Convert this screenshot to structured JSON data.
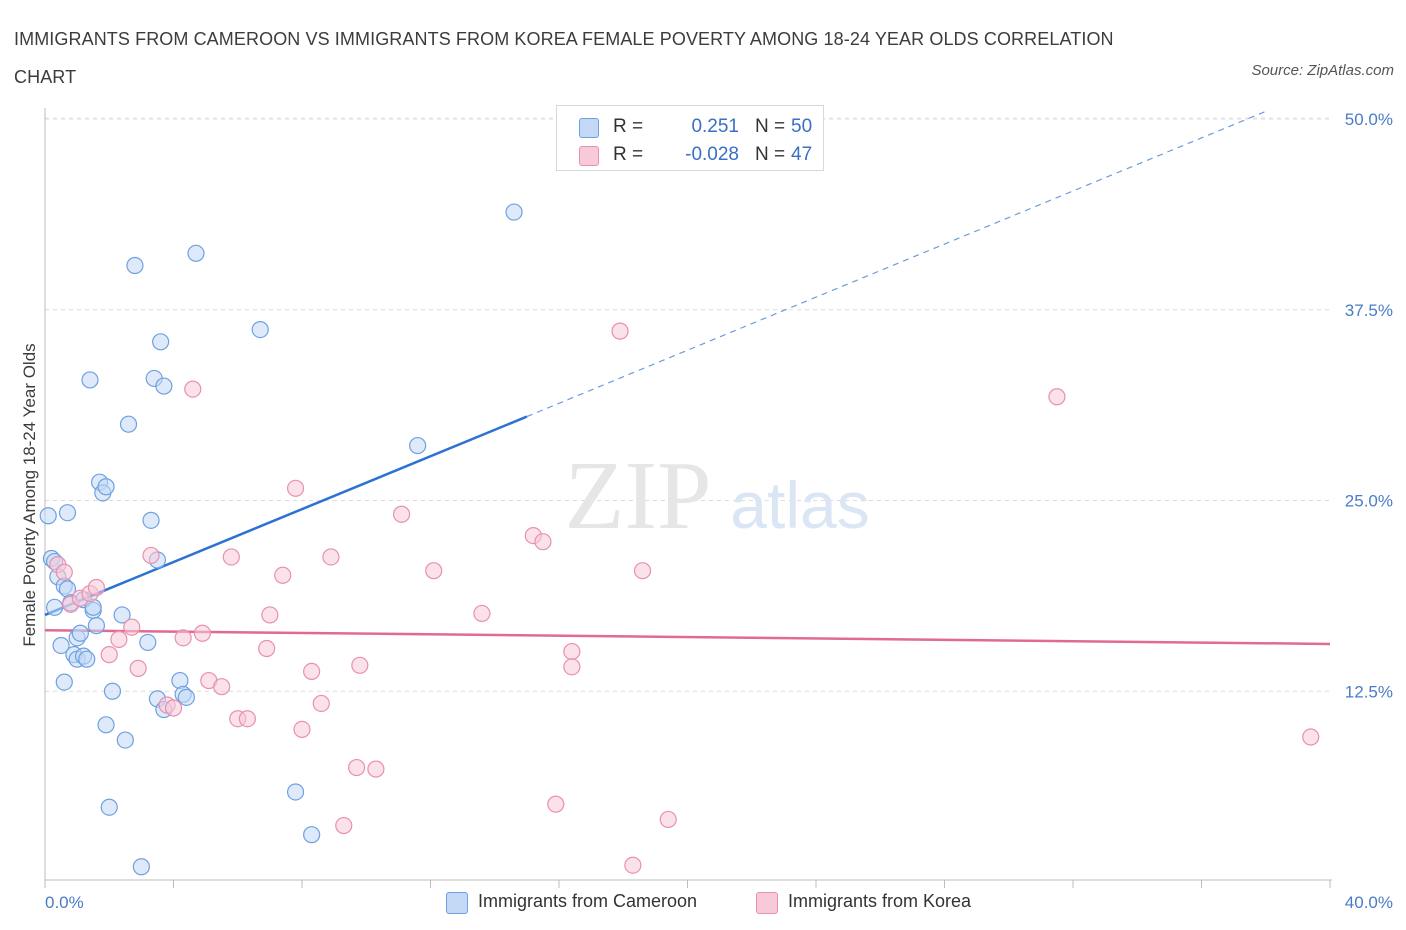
{
  "title": "IMMIGRANTS FROM CAMEROON VS IMMIGRANTS FROM KOREA FEMALE POVERTY AMONG 18-24 YEAR OLDS CORRELATION CHART",
  "source": "Source: ZipAtlas.com",
  "watermark": {
    "zip": "ZIP",
    "atlas": "atlas"
  },
  "legend_top": {
    "rows": [
      {
        "r_label": "R =",
        "r_value": "0.251",
        "n_label": "N =",
        "n_value": "50"
      },
      {
        "r_label": "R =",
        "r_value": "-0.028",
        "n_label": "N =",
        "n_value": "47"
      }
    ]
  },
  "legend_bottom": [
    "Immigrants from Cameroon",
    "Immigrants from Korea"
  ],
  "chart_data": {
    "type": "scatter",
    "title": "IMMIGRANTS FROM CAMEROON VS IMMIGRANTS FROM KOREA FEMALE POVERTY AMONG 18-24 YEAR OLDS CORRELATION CHART",
    "xlabel": "",
    "ylabel": "Female Poverty Among 18-24 Year Olds",
    "xlim": [
      0,
      40
    ],
    "ylim": [
      0,
      50
    ],
    "x_tick_labels": [
      "0.0%",
      "40.0%"
    ],
    "y_ticks": [
      12.5,
      25,
      37.5,
      50
    ],
    "y_tick_labels": [
      "12.5%",
      "25.0%",
      "37.5%",
      "50.0%"
    ],
    "grid": true,
    "legend_position": "top-center",
    "series": [
      {
        "name": "Immigrants from Cameroon",
        "color": "#6fa0e0",
        "fill": "#c2d8f5",
        "line_color": "#2c72d2",
        "trend": {
          "x": [
            0,
            15
          ],
          "y": [
            17.5,
            30.5
          ],
          "dashed_to": [
            38,
            50.5
          ]
        },
        "points": [
          [
            0.1,
            24.0
          ],
          [
            0.2,
            21.2
          ],
          [
            0.3,
            21.0
          ],
          [
            0.3,
            18.0
          ],
          [
            0.4,
            20.0
          ],
          [
            0.5,
            15.5
          ],
          [
            0.6,
            19.4
          ],
          [
            0.6,
            13.1
          ],
          [
            0.7,
            19.2
          ],
          [
            0.7,
            24.2
          ],
          [
            0.8,
            18.3
          ],
          [
            0.9,
            14.9
          ],
          [
            1.0,
            14.6
          ],
          [
            1.0,
            16.0
          ],
          [
            1.1,
            16.3
          ],
          [
            1.2,
            18.5
          ],
          [
            1.2,
            14.8
          ],
          [
            1.3,
            14.6
          ],
          [
            1.4,
            32.9
          ],
          [
            1.5,
            17.8
          ],
          [
            1.5,
            18.0
          ],
          [
            1.6,
            16.8
          ],
          [
            1.7,
            26.2
          ],
          [
            1.8,
            25.5
          ],
          [
            1.9,
            25.9
          ],
          [
            1.9,
            10.3
          ],
          [
            2.0,
            4.9
          ],
          [
            2.1,
            12.5
          ],
          [
            2.4,
            17.5
          ],
          [
            2.5,
            9.3
          ],
          [
            2.6,
            30.0
          ],
          [
            2.8,
            40.4
          ],
          [
            3.0,
            1.0
          ],
          [
            3.2,
            15.7
          ],
          [
            3.3,
            23.7
          ],
          [
            3.4,
            33.0
          ],
          [
            3.5,
            21.1
          ],
          [
            3.5,
            12.0
          ],
          [
            3.6,
            35.4
          ],
          [
            3.7,
            32.5
          ],
          [
            3.7,
            11.3
          ],
          [
            4.2,
            13.2
          ],
          [
            4.3,
            12.3
          ],
          [
            4.4,
            12.1
          ],
          [
            4.7,
            41.2
          ],
          [
            6.7,
            36.2
          ],
          [
            7.8,
            5.9
          ],
          [
            8.3,
            3.1
          ],
          [
            11.6,
            28.6
          ],
          [
            14.6,
            43.9
          ]
        ]
      },
      {
        "name": "Immigrants from Korea",
        "color": "#e890b0",
        "fill": "#f7c9d9",
        "line_color": "#e06a93",
        "trend": {
          "x": [
            0,
            40
          ],
          "y": [
            16.5,
            15.6
          ]
        },
        "points": [
          [
            0.4,
            20.8
          ],
          [
            0.6,
            20.3
          ],
          [
            0.8,
            18.2
          ],
          [
            1.1,
            18.6
          ],
          [
            1.4,
            18.9
          ],
          [
            1.6,
            19.3
          ],
          [
            2.0,
            14.9
          ],
          [
            2.3,
            15.9
          ],
          [
            2.7,
            16.7
          ],
          [
            2.9,
            14.0
          ],
          [
            3.3,
            21.4
          ],
          [
            3.8,
            11.6
          ],
          [
            4.0,
            11.4
          ],
          [
            4.3,
            16.0
          ],
          [
            4.6,
            32.3
          ],
          [
            4.9,
            16.3
          ],
          [
            5.1,
            13.2
          ],
          [
            5.5,
            12.8
          ],
          [
            5.8,
            21.3
          ],
          [
            6.0,
            10.7
          ],
          [
            6.3,
            10.7
          ],
          [
            6.9,
            15.3
          ],
          [
            7.0,
            17.5
          ],
          [
            7.4,
            20.1
          ],
          [
            7.8,
            25.8
          ],
          [
            8.0,
            10.0
          ],
          [
            8.3,
            13.8
          ],
          [
            8.6,
            11.7
          ],
          [
            8.9,
            21.3
          ],
          [
            9.3,
            3.7
          ],
          [
            9.7,
            7.5
          ],
          [
            9.8,
            14.2
          ],
          [
            10.3,
            7.4
          ],
          [
            11.1,
            24.1
          ],
          [
            12.1,
            20.4
          ],
          [
            13.6,
            17.6
          ],
          [
            15.2,
            22.7
          ],
          [
            15.5,
            22.3
          ],
          [
            15.9,
            5.1
          ],
          [
            16.4,
            15.1
          ],
          [
            16.4,
            14.1
          ],
          [
            17.9,
            36.1
          ],
          [
            18.3,
            1.1
          ],
          [
            18.6,
            20.4
          ],
          [
            19.4,
            4.1
          ],
          [
            31.5,
            31.8
          ],
          [
            39.4,
            9.5
          ]
        ]
      }
    ]
  }
}
